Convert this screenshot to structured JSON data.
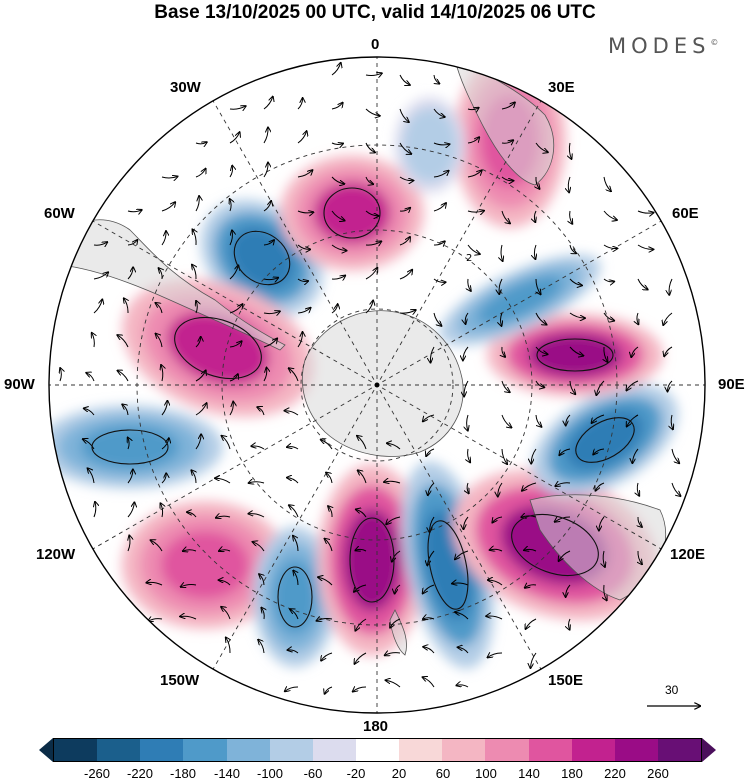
{
  "header": {
    "title": "Base 13/10/2025 00 UTC, valid 14/10/2025 06 UTC",
    "brand": "MODES",
    "brand_mark": "©"
  },
  "map": {
    "projection": "south-polar-stereographic",
    "longitude_labels": {
      "lon_0": "0",
      "lon_30e": "30E",
      "lon_60e": "60E",
      "lon_90e": "90E",
      "lon_120e": "120E",
      "lon_150e": "150E",
      "lon_180": "180",
      "lon_150w": "150W",
      "lon_120w": "120W",
      "lon_90w": "90W",
      "lon_60w": "60W",
      "lon_30w": "30W"
    },
    "reference_vector": {
      "label": "30"
    },
    "contour_label": "2"
  },
  "colorbar": {
    "colors": [
      "#0d3b5e",
      "#1b5f8c",
      "#2f7db5",
      "#4f9ac9",
      "#7fb3d9",
      "#b3cde6",
      "#dcdcee",
      "#ffffff",
      "#f8d8d8",
      "#f4b6c3",
      "#ed8bb1",
      "#e0559f",
      "#c2228f",
      "#9a0c86",
      "#680f75"
    ],
    "under_color": "#0b2c47",
    "over_color": "#4b0f5c",
    "ticks": {
      "t0": "-260",
      "t1": "-220",
      "t2": "-180",
      "t3": "-140",
      "t4": "-100",
      "t5": "-60",
      "t6": "-20",
      "t7": "20",
      "t8": "60",
      "t9": "100",
      "t10": "140",
      "t11": "180",
      "t12": "220",
      "t13": "260"
    }
  },
  "anomaly_centers": [
    {
      "id": "sw-low-60w",
      "value": -220
    },
    {
      "id": "high-30w",
      "value": 180
    },
    {
      "id": "high-70w",
      "value": 180
    },
    {
      "id": "low-100w",
      "value": -180
    },
    {
      "id": "high-130w",
      "value": 140
    },
    {
      "id": "low-155w",
      "value": -180
    },
    {
      "id": "high-170e",
      "value": 220
    },
    {
      "id": "low-160e",
      "value": -220
    },
    {
      "id": "high-130e",
      "value": 220
    },
    {
      "id": "low-100e",
      "value": -220
    },
    {
      "id": "high-75e",
      "value": 220
    },
    {
      "id": "low-60e",
      "value": -180
    },
    {
      "id": "high-30e",
      "value": 140
    },
    {
      "id": "low-10w",
      "value": -100
    }
  ]
}
